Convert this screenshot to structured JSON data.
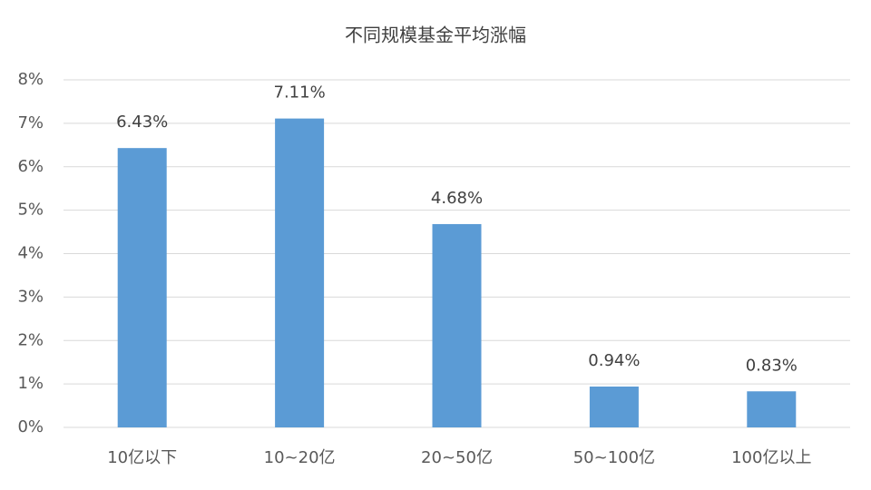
{
  "chart_data": {
    "type": "bar",
    "title": "不同规模基金平均涨幅",
    "categories": [
      "10亿以下",
      "10~20亿",
      "20~50亿",
      "50~100亿",
      "100亿以上"
    ],
    "values": [
      6.43,
      7.11,
      4.68,
      0.94,
      0.83
    ],
    "value_labels": [
      "6.43%",
      "7.11%",
      "4.68%",
      "0.94%",
      "0.83%"
    ],
    "color": "#5b9bd5",
    "ylim": [
      0,
      8
    ],
    "yticks": [
      {
        "value": 0,
        "label": "0%"
      },
      {
        "value": 1,
        "label": "1%"
      },
      {
        "value": 2,
        "label": "2%"
      },
      {
        "value": 3,
        "label": "3%"
      },
      {
        "value": 4,
        "label": "4%"
      },
      {
        "value": 5,
        "label": "5%"
      },
      {
        "value": 6,
        "label": "6%"
      },
      {
        "value": 7,
        "label": "7%"
      },
      {
        "value": 8,
        "label": "8%"
      }
    ],
    "grid": true
  }
}
